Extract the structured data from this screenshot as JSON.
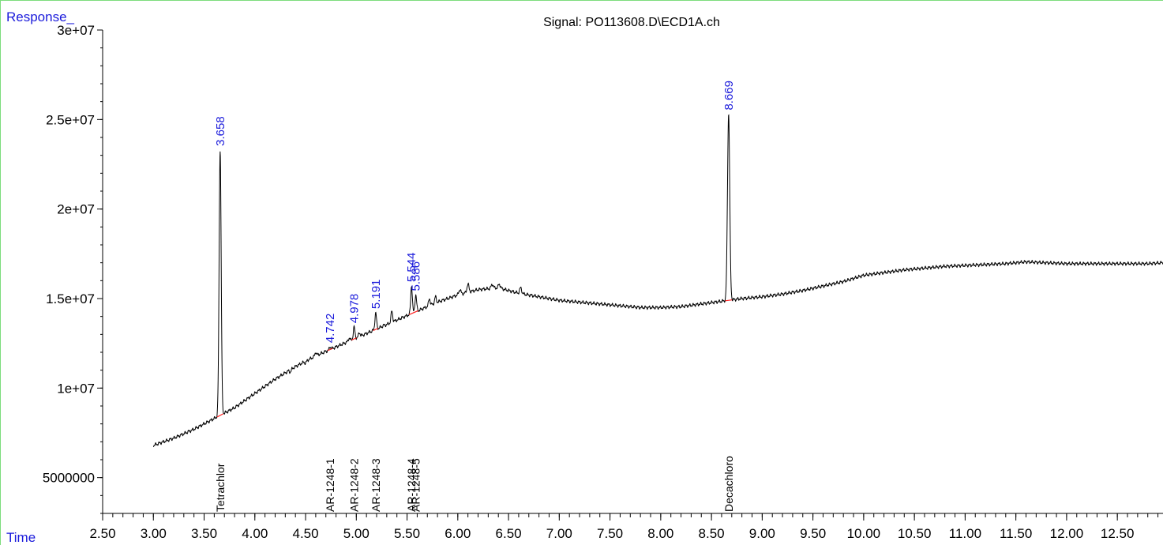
{
  "chart_data": {
    "type": "line",
    "title": "Signal: PO113608.D\\ECD1A.ch",
    "ylabel": "Response_",
    "xlabel": "Time",
    "xlim": [
      2.5,
      12.95
    ],
    "ylim": [
      3000000,
      30000000
    ],
    "x_ticks": [
      "2.50",
      "3.00",
      "3.50",
      "4.00",
      "4.50",
      "5.00",
      "5.50",
      "6.00",
      "6.50",
      "7.00",
      "7.50",
      "8.00",
      "8.50",
      "9.00",
      "9.50",
      "10.00",
      "10.50",
      "11.00",
      "11.50",
      "12.00",
      "12.50"
    ],
    "y_ticks": [
      "3e+07",
      "2.5e+07",
      "2e+07",
      "1.5e+07",
      "1e+07",
      "5000000"
    ],
    "colors": {
      "trace": "#000000",
      "peak_label": "#1a1adb",
      "axis_label": "#1a1adb",
      "baseline_mark": "#ff2020"
    },
    "baseline": [
      [
        3.0,
        6800000
      ],
      [
        3.2,
        7200000
      ],
      [
        3.4,
        7700000
      ],
      [
        3.6,
        8300000
      ],
      [
        3.8,
        8900000
      ],
      [
        4.0,
        9700000
      ],
      [
        4.2,
        10500000
      ],
      [
        4.4,
        11200000
      ],
      [
        4.6,
        11800000
      ],
      [
        4.8,
        12300000
      ],
      [
        5.0,
        12800000
      ],
      [
        5.2,
        13300000
      ],
      [
        5.4,
        13800000
      ],
      [
        5.6,
        14300000
      ],
      [
        5.8,
        14800000
      ],
      [
        6.0,
        15200000
      ],
      [
        6.2,
        15500000
      ],
      [
        6.4,
        15600000
      ],
      [
        6.6,
        15300000
      ],
      [
        6.8,
        15100000
      ],
      [
        7.0,
        14900000
      ],
      [
        7.2,
        14800000
      ],
      [
        7.4,
        14700000
      ],
      [
        7.6,
        14600000
      ],
      [
        7.8,
        14500000
      ],
      [
        8.0,
        14500000
      ],
      [
        8.2,
        14550000
      ],
      [
        8.4,
        14700000
      ],
      [
        8.6,
        14850000
      ],
      [
        8.8,
        15000000
      ],
      [
        9.0,
        15100000
      ],
      [
        9.2,
        15250000
      ],
      [
        9.4,
        15450000
      ],
      [
        9.6,
        15700000
      ],
      [
        9.8,
        15950000
      ],
      [
        10.0,
        16300000
      ],
      [
        10.2,
        16450000
      ],
      [
        10.4,
        16600000
      ],
      [
        10.6,
        16700000
      ],
      [
        10.8,
        16800000
      ],
      [
        11.0,
        16850000
      ],
      [
        11.2,
        16900000
      ],
      [
        11.4,
        16950000
      ],
      [
        11.6,
        17050000
      ],
      [
        11.8,
        17000000
      ],
      [
        12.0,
        16950000
      ],
      [
        12.2,
        16950000
      ],
      [
        12.4,
        16950000
      ],
      [
        12.6,
        16950000
      ],
      [
        12.8,
        16950000
      ],
      [
        12.95,
        17000000
      ]
    ],
    "peaks": [
      {
        "rt": 3.658,
        "height": 23300000,
        "width": 0.01,
        "labeled": true
      },
      {
        "rt": 3.95,
        "height": 9500000,
        "width": 0.01,
        "labeled": false
      },
      {
        "rt": 4.35,
        "height": 10900000,
        "width": 0.008,
        "labeled": false
      },
      {
        "rt": 4.5,
        "height": 11400000,
        "width": 0.008,
        "labeled": false
      },
      {
        "rt": 4.6,
        "height": 12000000,
        "width": 0.008,
        "labeled": false
      },
      {
        "rt": 4.742,
        "height": 12300000,
        "width": 0.008,
        "labeled": true
      },
      {
        "rt": 4.93,
        "height": 12800000,
        "width": 0.008,
        "labeled": false
      },
      {
        "rt": 4.978,
        "height": 13400000,
        "width": 0.008,
        "labeled": true
      },
      {
        "rt": 5.03,
        "height": 13100000,
        "width": 0.008,
        "labeled": false
      },
      {
        "rt": 5.191,
        "height": 14200000,
        "width": 0.008,
        "labeled": true
      },
      {
        "rt": 5.27,
        "height": 13500000,
        "width": 0.008,
        "labeled": false
      },
      {
        "rt": 5.35,
        "height": 14300000,
        "width": 0.008,
        "labeled": false
      },
      {
        "rt": 5.544,
        "height": 15700000,
        "width": 0.008,
        "labeled": true
      },
      {
        "rt": 5.586,
        "height": 15200000,
        "width": 0.008,
        "labeled": true
      },
      {
        "rt": 5.72,
        "height": 15000000,
        "width": 0.008,
        "labeled": false
      },
      {
        "rt": 5.78,
        "height": 15100000,
        "width": 0.008,
        "labeled": false
      },
      {
        "rt": 6.02,
        "height": 15500000,
        "width": 0.01,
        "labeled": false
      },
      {
        "rt": 6.1,
        "height": 15800000,
        "width": 0.01,
        "labeled": false
      },
      {
        "rt": 6.34,
        "height": 15800000,
        "width": 0.01,
        "labeled": false
      },
      {
        "rt": 6.41,
        "height": 15800000,
        "width": 0.01,
        "labeled": false
      },
      {
        "rt": 6.62,
        "height": 15600000,
        "width": 0.01,
        "labeled": false
      },
      {
        "rt": 8.669,
        "height": 25300000,
        "width": 0.011,
        "labeled": true
      }
    ],
    "peak_labels": [
      "3.658",
      "4.742",
      "4.978",
      "5.191",
      "5.544",
      "5.586",
      "8.669"
    ],
    "compounds": [
      {
        "name": "Tetrachlor",
        "rt": 3.658
      },
      {
        "name": "AR-1248-1",
        "rt": 4.742
      },
      {
        "name": "AR-1248-2",
        "rt": 4.978
      },
      {
        "name": "AR-1248-3",
        "rt": 5.191
      },
      {
        "name": "AR-1248-4",
        "rt": 5.544
      },
      {
        "name": "AR-1248-5",
        "rt": 5.586
      },
      {
        "name": "Decachloro",
        "rt": 8.669
      }
    ]
  }
}
